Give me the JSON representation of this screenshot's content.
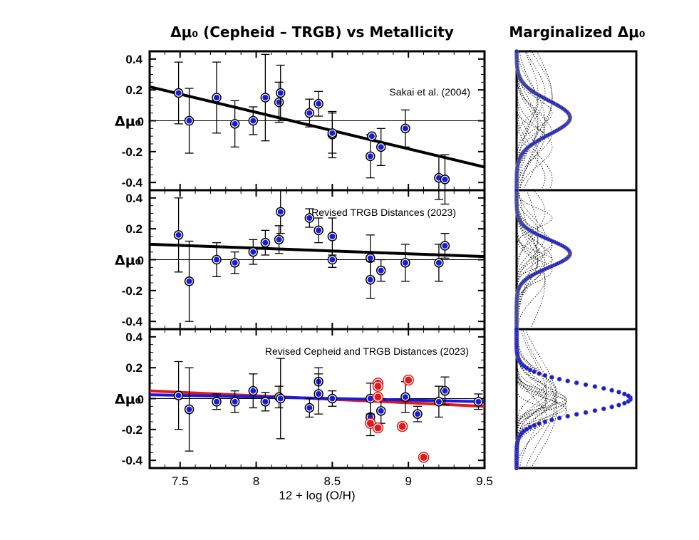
{
  "titles": {
    "main": "Δμ₀ (Cepheid – TRGB) vs Metallicity",
    "marginal": "Marginalized Δμ₀"
  },
  "colors": {
    "point_fill": "#1a1add",
    "highlight_fill": "#e01a1a",
    "fit_black": "#000000",
    "fit_red": "#e01a1a",
    "fit_blue": "#1a1add",
    "marginal_line": "#1a1add"
  },
  "chart_data": [
    {
      "type": "scatter",
      "panel": "top",
      "annotation": "Sakai et al. (2004)",
      "ylabel": "Δμ₀",
      "xlabel": "12 + log (O/H)",
      "xlim": [
        7.3,
        9.5
      ],
      "ylim": [
        -0.45,
        0.45
      ],
      "xticks": [
        "7.5",
        "8",
        "8.5",
        "9",
        "9.5"
      ],
      "yticks": [
        "0.4",
        "0.2",
        "0",
        "-0.2",
        "-0.4"
      ],
      "points": [
        {
          "x": 7.49,
          "y": 0.18,
          "err": 0.2
        },
        {
          "x": 7.56,
          "y": 0.0,
          "err": 0.21
        },
        {
          "x": 7.74,
          "y": 0.15,
          "err": 0.23
        },
        {
          "x": 7.86,
          "y": -0.02,
          "err": 0.15
        },
        {
          "x": 7.98,
          "y": 0.0,
          "err": 0.09
        },
        {
          "x": 8.06,
          "y": 0.15,
          "err": 0.28
        },
        {
          "x": 8.15,
          "y": 0.12,
          "err": 0.13
        },
        {
          "x": 8.16,
          "y": 0.18,
          "err": 0.18
        },
        {
          "x": 8.35,
          "y": 0.05,
          "err": 0.09
        },
        {
          "x": 8.41,
          "y": 0.11,
          "err": 0.08
        },
        {
          "x": 8.5,
          "y": -0.09,
          "err": 0.15
        },
        {
          "x": 8.5,
          "y": -0.08,
          "err": 0.13
        },
        {
          "x": 8.75,
          "y": -0.23,
          "err": 0.14
        },
        {
          "x": 8.76,
          "y": -0.1,
          "err": 0.0
        },
        {
          "x": 8.82,
          "y": -0.17,
          "err": 0.12
        },
        {
          "x": 8.98,
          "y": -0.05,
          "err": 0.12
        },
        {
          "x": 9.2,
          "y": -0.37,
          "err": 0.14
        },
        {
          "x": 9.24,
          "y": -0.38,
          "err": 0.16
        }
      ],
      "fits": [
        {
          "color": "black",
          "x": [
            7.3,
            9.5
          ],
          "y": [
            0.22,
            -0.3
          ]
        }
      ],
      "zero_line": true
    },
    {
      "type": "scatter",
      "panel": "middle",
      "annotation": "Revised TRGB Distances (2023)",
      "ylabel": "Δμ₀",
      "xlim": [
        7.3,
        9.5
      ],
      "ylim": [
        -0.45,
        0.45
      ],
      "yticks": [
        "0.4",
        "0.2",
        "0",
        "-0.2",
        "-0.4"
      ],
      "points": [
        {
          "x": 7.49,
          "y": 0.16,
          "err": 0.24
        },
        {
          "x": 7.56,
          "y": -0.14,
          "err": 0.26
        },
        {
          "x": 7.74,
          "y": 0.0,
          "err": 0.11
        },
        {
          "x": 7.86,
          "y": -0.02,
          "err": 0.07
        },
        {
          "x": 7.98,
          "y": 0.05,
          "err": 0.08
        },
        {
          "x": 8.06,
          "y": 0.11,
          "err": 0.08
        },
        {
          "x": 8.15,
          "y": 0.13,
          "err": 0.09
        },
        {
          "x": 8.16,
          "y": 0.31,
          "err": 0.14
        },
        {
          "x": 8.35,
          "y": 0.27,
          "err": 0.06
        },
        {
          "x": 8.41,
          "y": 0.19,
          "err": 0.08
        },
        {
          "x": 8.5,
          "y": 0.15,
          "err": 0.12
        },
        {
          "x": 8.5,
          "y": 0.0,
          "err": 0.05
        },
        {
          "x": 8.75,
          "y": 0.01,
          "err": 0.15
        },
        {
          "x": 8.75,
          "y": -0.13,
          "err": 0.12
        },
        {
          "x": 8.82,
          "y": -0.07,
          "err": 0.07
        },
        {
          "x": 8.98,
          "y": -0.02,
          "err": 0.12
        },
        {
          "x": 9.2,
          "y": -0.02,
          "err": 0.12
        },
        {
          "x": 9.24,
          "y": 0.09,
          "err": 0.08
        }
      ],
      "fits": [
        {
          "color": "black",
          "x": [
            7.3,
            9.5
          ],
          "y": [
            0.1,
            0.02
          ]
        }
      ],
      "zero_line": true
    },
    {
      "type": "scatter",
      "panel": "bottom",
      "annotation": "Revised Cepheid and TRGB Distances (2023)",
      "ylabel": "Δμ₀",
      "xlabel": "12 + log (O/H)",
      "xlim": [
        7.3,
        9.5
      ],
      "ylim": [
        -0.45,
        0.45
      ],
      "xticks": [
        "7.5",
        "8",
        "8.5",
        "9",
        "9.5"
      ],
      "yticks": [
        "0.4",
        "0.2",
        "0",
        "-0.2",
        "-0.4"
      ],
      "points": [
        {
          "x": 7.49,
          "y": 0.02,
          "err": 0.22
        },
        {
          "x": 7.56,
          "y": -0.07,
          "err": 0.27
        },
        {
          "x": 7.74,
          "y": -0.02,
          "err": 0.05
        },
        {
          "x": 7.86,
          "y": -0.02,
          "err": 0.07
        },
        {
          "x": 7.98,
          "y": 0.05,
          "err": 0.11
        },
        {
          "x": 8.06,
          "y": -0.02,
          "err": 0.06
        },
        {
          "x": 8.15,
          "y": 0.01,
          "err": 0.07
        },
        {
          "x": 8.16,
          "y": 0.0,
          "err": 0.26
        },
        {
          "x": 8.35,
          "y": -0.06,
          "err": 0.06
        },
        {
          "x": 8.41,
          "y": 0.11,
          "err": 0.09
        },
        {
          "x": 8.41,
          "y": 0.03,
          "err": 0.13
        },
        {
          "x": 8.5,
          "y": 0.0,
          "err": 0.05
        },
        {
          "x": 8.75,
          "y": -0.12,
          "err": 0.12
        },
        {
          "x": 8.75,
          "y": 0.0,
          "err": 0.1
        },
        {
          "x": 8.82,
          "y": -0.08,
          "err": 0.08
        },
        {
          "x": 8.98,
          "y": 0.01,
          "err": 0.1
        },
        {
          "x": 9.06,
          "y": -0.1,
          "err": 0.05
        },
        {
          "x": 9.2,
          "y": -0.02,
          "err": 0.1
        },
        {
          "x": 9.24,
          "y": 0.05,
          "err": 0.09
        },
        {
          "x": 9.46,
          "y": -0.02,
          "err": 0.05
        }
      ],
      "highlight_points": [
        {
          "x": 8.75,
          "y": -0.16
        },
        {
          "x": 8.8,
          "y": 0.1
        },
        {
          "x": 8.8,
          "y": 0.08
        },
        {
          "x": 8.8,
          "y": 0.01
        },
        {
          "x": 8.8,
          "y": -0.19
        },
        {
          "x": 8.96,
          "y": -0.18
        },
        {
          "x": 9.0,
          "y": 0.12
        },
        {
          "x": 9.1,
          "y": -0.38
        }
      ],
      "fits": [
        {
          "color": "red",
          "x": [
            7.3,
            9.5
          ],
          "y": [
            0.05,
            -0.05
          ]
        },
        {
          "color": "blue",
          "x": [
            7.3,
            9.5
          ],
          "y": [
            0.025,
            -0.02
          ]
        }
      ],
      "zero_line": true
    }
  ],
  "marginal_data": [
    {
      "panel": "top",
      "peak_y": 0.02,
      "sigma": 0.11,
      "ylim": [
        -0.45,
        0.45
      ]
    },
    {
      "panel": "middle",
      "peak_y": 0.04,
      "sigma": 0.09,
      "ylim": [
        -0.45,
        0.45
      ]
    },
    {
      "panel": "bottom",
      "peak_y": 0.0,
      "sigma": 0.09,
      "ylim": [
        -0.45,
        0.45
      ]
    }
  ]
}
